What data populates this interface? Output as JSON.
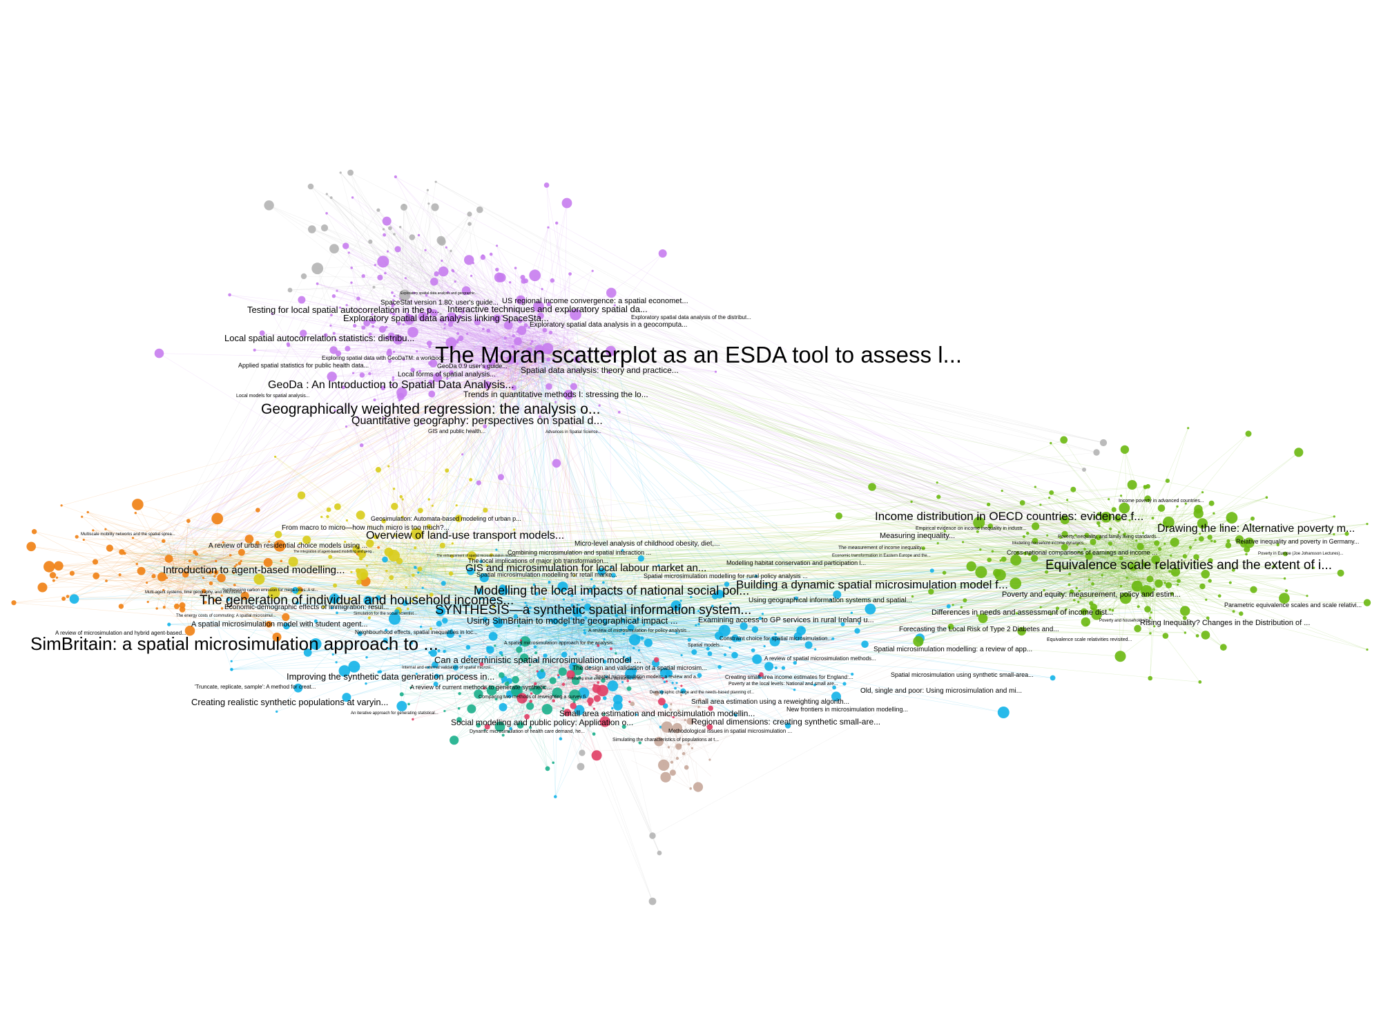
{
  "graph": {
    "colors": {
      "purple": "#c77cee",
      "orange": "#f07f12",
      "yellow": "#d8cc1a",
      "cyan": "#12b3e8",
      "green": "#6ab80f",
      "teal": "#1aaf8b",
      "red": "#e03d64",
      "grey": "#b4b4b4",
      "brown": "#c7a79a"
    },
    "labels": [
      {
        "text": "The Moran scatterplot as an ESDA tool to assess l...",
        "color": "purple"
      },
      {
        "text": "Geographically weighted regression: the analysis o...",
        "color": "purple"
      },
      {
        "text": "Quantitative geography: perspectives on spatial d...",
        "color": "purple"
      },
      {
        "text": "GeoDa : An Introduction to Spatial Data Analysis...",
        "color": "purple"
      },
      {
        "text": "Local spatial autocorrelation statistics: distribu...",
        "color": "purple"
      },
      {
        "text": "Testing for local spatial autocorrelation in the p...",
        "color": "purple"
      },
      {
        "text": "Exploratory spatial data analysis linking SpaceSta...",
        "color": "purple"
      },
      {
        "text": "Interactive techniques and exploratory spatial da...",
        "color": "purple"
      },
      {
        "text": "US regional income convergence: a spatial economet...",
        "color": "purple"
      },
      {
        "text": "SpaceStat version 1.80: user's guide...",
        "color": "purple"
      },
      {
        "text": "Exploratory spatial data analysis in a geocomputa...",
        "color": "purple"
      },
      {
        "text": "Exploratory spatial data analysis of the distribut...",
        "color": "purple"
      },
      {
        "text": "Spatial data analysis: theory and practice...",
        "color": "purple"
      },
      {
        "text": "Trends in quantitative methods I: stressing the lo...",
        "color": "purple"
      },
      {
        "text": "Local forms of spatial analysis...",
        "color": "purple"
      },
      {
        "text": "GeoDa 0.9 user's guide...",
        "color": "purple"
      },
      {
        "text": "Exploring spatial data with GeoDaTM: a workbook...",
        "color": "purple"
      },
      {
        "text": "Applied spatial statistics for public health data...",
        "color": "purple"
      },
      {
        "text": "Local models for spatial analysis...",
        "color": "purple"
      },
      {
        "text": "GIS and public health...",
        "color": "purple"
      },
      {
        "text": "Advances in Spatial Science...",
        "color": "purple"
      },
      {
        "text": "Exploratory spatial data analysis and geographic...",
        "color": "purple"
      },
      {
        "text": "SimBritain: a spatial microsimulation approach to ...",
        "color": "cyan"
      },
      {
        "text": "The generation of individual and household incomes...",
        "color": "cyan"
      },
      {
        "text": "SYNTHESIS—a synthetic spatial information system...",
        "color": "cyan"
      },
      {
        "text": "Modelling the local impacts of national social pol...",
        "color": "cyan"
      },
      {
        "text": "Building a dynamic spatial microsimulation model f...",
        "color": "cyan"
      },
      {
        "text": "GIS and microsimulation for local labour market an...",
        "color": "cyan"
      },
      {
        "text": "Using SimBritain to model the geographical impact ...",
        "color": "cyan"
      },
      {
        "text": "Can a deterministic spatial microsimulation model ...",
        "color": "cyan"
      },
      {
        "text": "Improving the synthetic data generation process in...",
        "color": "cyan"
      },
      {
        "text": "Creating realistic synthetic populations at varyin...",
        "color": "cyan"
      },
      {
        "text": "Small area estimation and microsimulation modellin...",
        "color": "cyan"
      },
      {
        "text": "Social modelling and public policy: Application o...",
        "color": "cyan"
      },
      {
        "text": "Regional dimensions: creating synthetic small-are...",
        "color": "cyan"
      },
      {
        "text": "Small area estimation using a reweighting algorith...",
        "color": "cyan"
      },
      {
        "text": "New frontiers in microsimulation modelling...",
        "color": "cyan"
      },
      {
        "text": "Old, single and poor: Using microsimulation and mi...",
        "color": "cyan"
      },
      {
        "text": "Spatial microsimulation using synthetic small-area...",
        "color": "cyan"
      },
      {
        "text": "Spatial microsimulation modelling: a review of app...",
        "color": "cyan"
      },
      {
        "text": "A review of spatial microsimulation methods...",
        "color": "cyan"
      },
      {
        "text": "Forecasting the Local Risk of Type 2 Diabetes and...",
        "color": "cyan"
      },
      {
        "text": "Examining access to GP services in rural Ireland u...",
        "color": "cyan"
      },
      {
        "text": "Using geographical information systems and spatial...",
        "color": "cyan"
      },
      {
        "text": "Spatial microsimulation modelling for rural policy analysis ...",
        "color": "cyan"
      },
      {
        "text": "Modelling habitat conservation and participation l...",
        "color": "cyan"
      },
      {
        "text": "Constraint choice for spatial microsimulation...",
        "color": "cyan"
      },
      {
        "text": "Creating small area income estimates for England:...",
        "color": "cyan"
      },
      {
        "text": "Poverty at the local levels: National and small are...",
        "color": "cyan"
      },
      {
        "text": "Methodological issues in spatial microsimulation ...",
        "color": "cyan"
      },
      {
        "text": "Simulating the characteristics of populations at t...",
        "color": "cyan"
      },
      {
        "text": "Dynamic microsimulation of health care demand, he...",
        "color": "teal"
      },
      {
        "text": "An iterative approach for generating statistical...",
        "color": "cyan"
      },
      {
        "text": "'Truncate, replicate, sample': A method for creat...",
        "color": "cyan"
      },
      {
        "text": "A review of current methods to generate synthetic...",
        "color": "cyan"
      },
      {
        "text": "The design and validation of a spatial microsim...",
        "color": "cyan"
      },
      {
        "text": "Spatial microsimulation models: a review and a...",
        "color": "cyan"
      },
      {
        "text": "A spatial microsimulation approach for the analysis...",
        "color": "cyan"
      },
      {
        "text": "A review of microsimulation for policy analysis...",
        "color": "cyan"
      },
      {
        "text": "Spatial models...",
        "color": "cyan"
      },
      {
        "text": "Spatial microsimulation modelling for retail marke...",
        "color": "cyan"
      },
      {
        "text": "Combining microsimulation and spatial interaction ...",
        "color": "cyan"
      },
      {
        "text": "Micro-level analysis of childhood obesity, diet,...",
        "color": "cyan"
      },
      {
        "text": "The local implications of major job transformation...",
        "color": "cyan"
      },
      {
        "text": "Comparing two methods of reweighting a survey fi...",
        "color": "teal"
      },
      {
        "text": "Estimating small area income deprivation: an iter...",
        "color": "teal"
      },
      {
        "text": "Demographic change and the needs-based planning of...",
        "color": "cyan"
      },
      {
        "text": "Internal and external validation of spatial microsi...",
        "color": "cyan"
      },
      {
        "text": "Neighbourhood effects, spatial inequalities in loc...",
        "color": "yellow"
      },
      {
        "text": "Overview of land-use transport models...",
        "color": "yellow"
      },
      {
        "text": "From macro to micro—how much micro is too much?...",
        "color": "yellow"
      },
      {
        "text": "Geosimulation: Automata-based modeling of urban p...",
        "color": "yellow"
      },
      {
        "text": "Introduction to agent-based modelling...",
        "color": "orange"
      },
      {
        "text": "A review of urban residential choice models using ...",
        "color": "orange"
      },
      {
        "text": "Economic-demographic effects of immigration: resul...",
        "color": "yellow"
      },
      {
        "text": "A spatial microsimulation model with student agent...",
        "color": "yellow"
      },
      {
        "text": "A review of microsimulation and hybrid agent-based...",
        "color": "yellow"
      },
      {
        "text": "Multiscale mobility networks and the spatial sprea...",
        "color": "orange"
      },
      {
        "text": "Multi-agent systems, time geography, and microsimu...",
        "color": "orange"
      },
      {
        "text": "The energy costs of commuting: A spatial microsimul...",
        "color": "yellow"
      },
      {
        "text": "Simulation for the social scientist...",
        "color": "orange"
      },
      {
        "text": "Synthesising carbon emission for mega-cities: A st...",
        "color": "yellow"
      },
      {
        "text": "The integration of agent-based modelling and geog...",
        "color": "yellow"
      },
      {
        "text": "The enhancement of spatial microsimulation models...",
        "color": "yellow"
      },
      {
        "text": "Income distribution in OECD countries: evidence f...",
        "color": "green"
      },
      {
        "text": "Drawing the line: Alternative poverty m...",
        "color": "green"
      },
      {
        "text": "Equivalence scale relativities and the extent of i...",
        "color": "green"
      },
      {
        "text": "Measuring inequality...",
        "color": "green"
      },
      {
        "text": "Poverty and equity: measurement, policy and estim...",
        "color": "green"
      },
      {
        "text": "Differences in needs and assessment of income dist...",
        "color": "green"
      },
      {
        "text": "Rising Inequality? Changes in the Distribution of ...",
        "color": "green"
      },
      {
        "text": "Parametric equivalence scales and scale relativi...",
        "color": "green"
      },
      {
        "text": "Relative inequality and poverty in Germany...",
        "color": "green"
      },
      {
        "text": "Cross-national comparisons of earnings and income ...",
        "color": "green"
      },
      {
        "text": "Poverty, inequality, and family living standards...",
        "color": "green"
      },
      {
        "text": "Empirical evidence on income inequality in industr...",
        "color": "green"
      },
      {
        "text": "The measurement of income inequality...",
        "color": "green"
      },
      {
        "text": "Economic transformation in Eastern Europe and the...",
        "color": "green"
      },
      {
        "text": "Modelling household income dynamics...",
        "color": "green"
      },
      {
        "text": "Income poverty in advanced countries...",
        "color": "green"
      },
      {
        "text": "Poverty in Europe (Joe Johansson Lectures)...",
        "color": "green"
      },
      {
        "text": "Poverty and household size...",
        "color": "green"
      },
      {
        "text": "Equivalence scale relativities revisited...",
        "color": "green"
      }
    ]
  }
}
